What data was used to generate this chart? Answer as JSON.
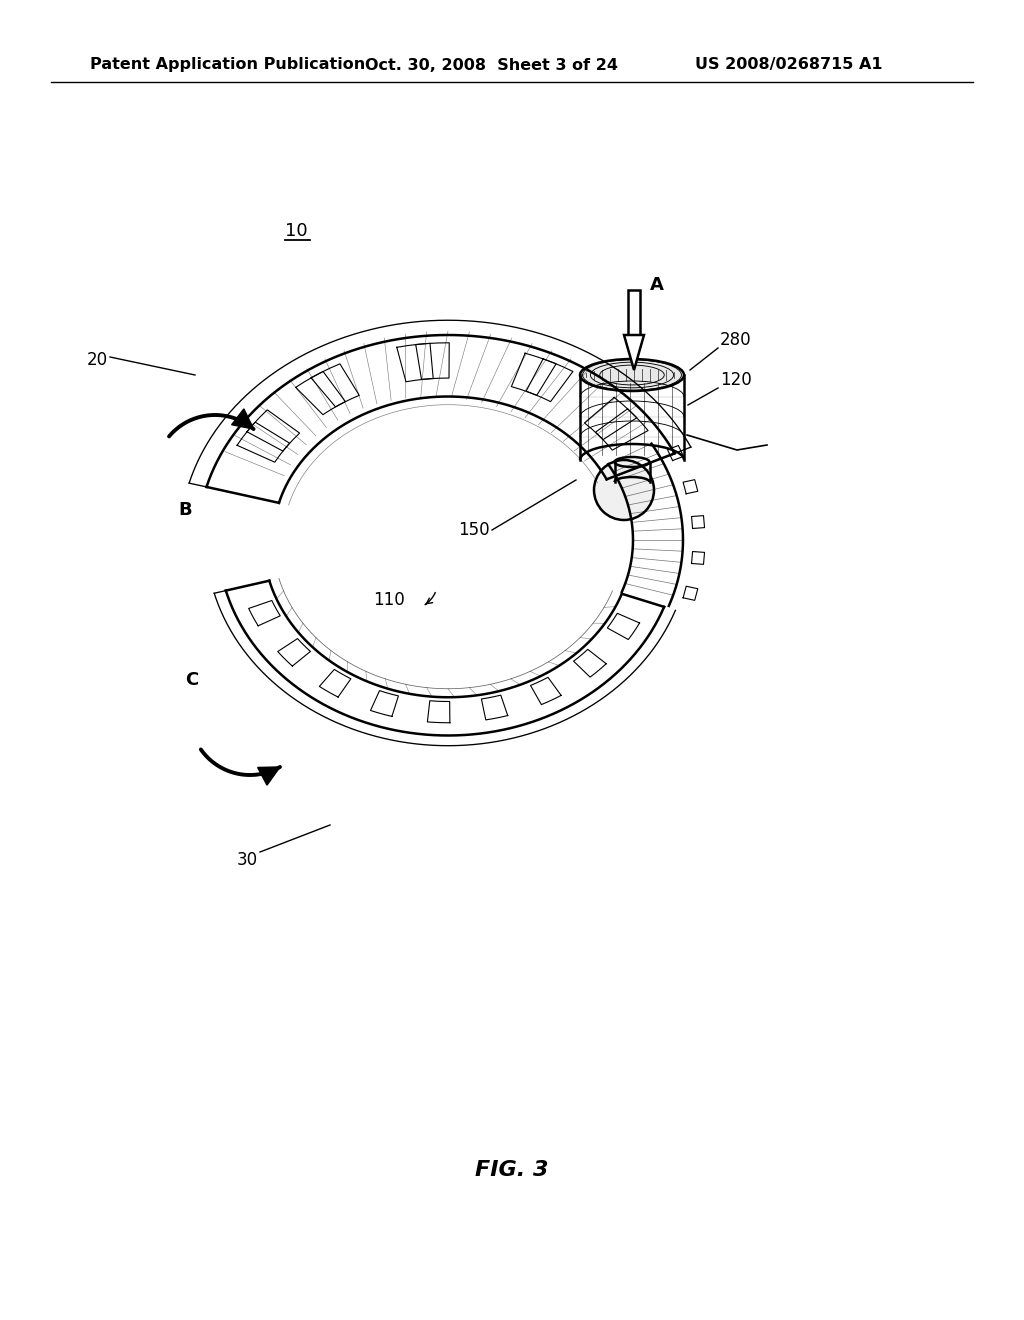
{
  "bg_color": "#ffffff",
  "header_left": "Patent Application Publication",
  "header_mid": "Oct. 30, 2008  Sheet 3 of 24",
  "header_right": "US 2008/0268715 A1",
  "fig_label": "FIG. 3",
  "line_color": "#000000",
  "gray_color": "#aaaaaa",
  "light_gray": "#dddddd",
  "header_fontsize": 11.5,
  "label_fontsize": 12,
  "fig_fontsize": 16
}
